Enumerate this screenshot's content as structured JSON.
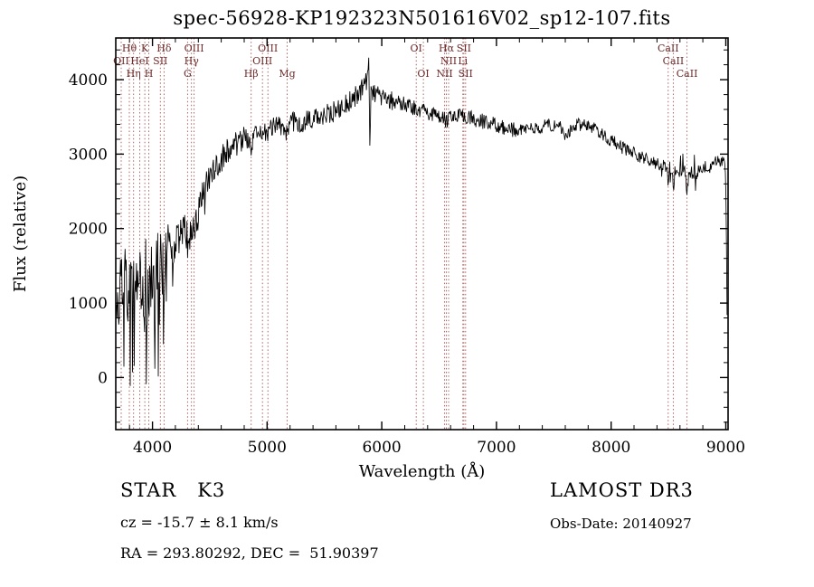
{
  "chart_data": {
    "type": "line",
    "title": "spec-56928-KP192323N501616V02_sp12-107.fits",
    "xlabel": "Wavelength (Å)",
    "ylabel": "Flux (relative)",
    "xlim": [
      3680,
      9020
    ],
    "ylim": [
      -700,
      4560
    ],
    "xticks": [
      4000,
      5000,
      6000,
      7000,
      8000,
      9000
    ],
    "yticks": [
      0,
      1000,
      2000,
      3000,
      4000
    ],
    "x_minor_step": 200,
    "y_minor_step": 200,
    "grid": false,
    "legend": "none",
    "line_marker_color": "#a85454",
    "line_label_color": "#6e2a2a",
    "spectrum_color": "#000000",
    "spectral_lines": [
      {
        "wavelength": 3727,
        "label": "OII",
        "row": 2
      },
      {
        "wavelength": 3798,
        "label": "Hθ",
        "row": 1
      },
      {
        "wavelength": 3835,
        "label": "Hη",
        "row": 3
      },
      {
        "wavelength": 3889,
        "label": "HeI",
        "row": 2
      },
      {
        "wavelength": 3933,
        "label": "K",
        "row": 1
      },
      {
        "wavelength": 3968,
        "label": "H",
        "row": 3
      },
      {
        "wavelength": 4069,
        "label": "SII",
        "row": 2
      },
      {
        "wavelength": 4101,
        "label": "Hδ",
        "row": 1
      },
      {
        "wavelength": 4306,
        "label": "G",
        "row": 3
      },
      {
        "wavelength": 4340,
        "label": "Hγ",
        "row": 2
      },
      {
        "wavelength": 4363,
        "label": "OIII",
        "row": 1
      },
      {
        "wavelength": 4861,
        "label": "Hβ",
        "row": 3
      },
      {
        "wavelength": 4959,
        "label": "OIII",
        "row": 2
      },
      {
        "wavelength": 5007,
        "label": "OIII",
        "row": 1
      },
      {
        "wavelength": 5175,
        "label": "Mg",
        "row": 3
      },
      {
        "wavelength": 6300,
        "label": "OI",
        "row": 1
      },
      {
        "wavelength": 6363,
        "label": "OI",
        "row": 3
      },
      {
        "wavelength": 6548,
        "label": "NII",
        "row": 3
      },
      {
        "wavelength": 6563,
        "label": "Hα",
        "row": 1
      },
      {
        "wavelength": 6583,
        "label": "NII",
        "row": 2
      },
      {
        "wavelength": 6707,
        "label": "Li",
        "row": 2
      },
      {
        "wavelength": 6716,
        "label": "SII",
        "row": 1
      },
      {
        "wavelength": 6731,
        "label": "SII",
        "row": 3
      },
      {
        "wavelength": 8498,
        "label": "CaII",
        "row": 1
      },
      {
        "wavelength": 8542,
        "label": "CaII",
        "row": 2
      },
      {
        "wavelength": 8662,
        "label": "CaII",
        "row": 3
      }
    ],
    "series": [
      {
        "name": "spectrum",
        "sample_step": 5,
        "noise_seed": 20140927,
        "noise_regions": [
          {
            "to": 4150,
            "amp": 480,
            "spike_prob": 0.16,
            "spike_amp": 1250
          },
          {
            "to": 4400,
            "amp": 260,
            "spike_prob": 0.05,
            "spike_amp": 500
          },
          {
            "to": 4800,
            "amp": 180,
            "spike_prob": 0.03,
            "spike_amp": 350
          },
          {
            "to": 5880,
            "amp": 140
          },
          {
            "to": 6100,
            "amp": 125
          },
          {
            "to": 7200,
            "amp": 105
          },
          {
            "to": 8400,
            "amp": 90
          },
          {
            "to": 9012,
            "amp": 85,
            "spike_prob": 0.04,
            "spike_amp": 300
          }
        ],
        "continuum_points": [
          [
            3686,
            1150
          ],
          [
            3700,
            1250
          ],
          [
            3715,
            1050
          ],
          [
            3730,
            1300
          ],
          [
            3745,
            1150
          ],
          [
            3760,
            1250
          ],
          [
            3775,
            1300
          ],
          [
            3790,
            1200
          ],
          [
            3805,
            1280
          ],
          [
            3820,
            1220
          ],
          [
            3835,
            1120
          ],
          [
            3850,
            1320
          ],
          [
            3865,
            1260
          ],
          [
            3880,
            1300
          ],
          [
            3895,
            1240
          ],
          [
            3910,
            1160
          ],
          [
            3925,
            1050
          ],
          [
            3933,
            950
          ],
          [
            3945,
            1250
          ],
          [
            3960,
            1120
          ],
          [
            3968,
            1030
          ],
          [
            3980,
            1300
          ],
          [
            4000,
            1500
          ],
          [
            4020,
            1480
          ],
          [
            4040,
            1550
          ],
          [
            4060,
            1480
          ],
          [
            4080,
            1460
          ],
          [
            4101,
            1340
          ],
          [
            4115,
            1560
          ],
          [
            4135,
            1650
          ],
          [
            4160,
            1700
          ],
          [
            4185,
            1760
          ],
          [
            4210,
            1800
          ],
          [
            4235,
            1840
          ],
          [
            4260,
            1890
          ],
          [
            4285,
            1930
          ],
          [
            4306,
            1840
          ],
          [
            4320,
            1920
          ],
          [
            4340,
            1780
          ],
          [
            4355,
            1960
          ],
          [
            4375,
            2080
          ],
          [
            4395,
            2220
          ],
          [
            4420,
            2360
          ],
          [
            4450,
            2520
          ],
          [
            4480,
            2640
          ],
          [
            4510,
            2720
          ],
          [
            4545,
            2810
          ],
          [
            4580,
            2890
          ],
          [
            4620,
            2970
          ],
          [
            4660,
            3040
          ],
          [
            4700,
            3090
          ],
          [
            4740,
            3140
          ],
          [
            4780,
            3180
          ],
          [
            4820,
            3220
          ],
          [
            4861,
            3080
          ],
          [
            4880,
            3260
          ],
          [
            4910,
            3300
          ],
          [
            4940,
            3330
          ],
          [
            4970,
            3310
          ],
          [
            5000,
            3290
          ],
          [
            5030,
            3330
          ],
          [
            5060,
            3360
          ],
          [
            5090,
            3390
          ],
          [
            5120,
            3370
          ],
          [
            5150,
            3340
          ],
          [
            5175,
            3240
          ],
          [
            5195,
            3380
          ],
          [
            5220,
            3420
          ],
          [
            5250,
            3440
          ],
          [
            5280,
            3410
          ],
          [
            5310,
            3430
          ],
          [
            5340,
            3450
          ],
          [
            5370,
            3460
          ],
          [
            5400,
            3480
          ],
          [
            5430,
            3490
          ],
          [
            5460,
            3510
          ],
          [
            5490,
            3530
          ],
          [
            5520,
            3540
          ],
          [
            5550,
            3550
          ],
          [
            5580,
            3570
          ],
          [
            5610,
            3590
          ],
          [
            5640,
            3620
          ],
          [
            5670,
            3650
          ],
          [
            5700,
            3690
          ],
          [
            5730,
            3720
          ],
          [
            5760,
            3760
          ],
          [
            5790,
            3810
          ],
          [
            5820,
            3860
          ],
          [
            5850,
            3930
          ],
          [
            5875,
            3990
          ],
          [
            5888,
            4340
          ],
          [
            5896,
            3020
          ],
          [
            5905,
            3790
          ],
          [
            5925,
            3810
          ],
          [
            5950,
            3800
          ],
          [
            5980,
            3780
          ],
          [
            6010,
            3770
          ],
          [
            6040,
            3750
          ],
          [
            6070,
            3730
          ],
          [
            6100,
            3710
          ],
          [
            6130,
            3700
          ],
          [
            6160,
            3690
          ],
          [
            6190,
            3670
          ],
          [
            6220,
            3660
          ],
          [
            6250,
            3640
          ],
          [
            6280,
            3620
          ],
          [
            6310,
            3600
          ],
          [
            6340,
            3590
          ],
          [
            6370,
            3570
          ],
          [
            6400,
            3560
          ],
          [
            6430,
            3550
          ],
          [
            6460,
            3540
          ],
          [
            6490,
            3530
          ],
          [
            6520,
            3510
          ],
          [
            6545,
            3490
          ],
          [
            6563,
            3430
          ],
          [
            6580,
            3490
          ],
          [
            6610,
            3500
          ],
          [
            6640,
            3510
          ],
          [
            6670,
            3520
          ],
          [
            6700,
            3520
          ],
          [
            6730,
            3500
          ],
          [
            6760,
            3490
          ],
          [
            6790,
            3480
          ],
          [
            6820,
            3460
          ],
          [
            6850,
            3450
          ],
          [
            6880,
            3440
          ],
          [
            6910,
            3430
          ],
          [
            6940,
            3410
          ],
          [
            6970,
            3400
          ],
          [
            7000,
            3390
          ],
          [
            7030,
            3380
          ],
          [
            7060,
            3360
          ],
          [
            7090,
            3350
          ],
          [
            7120,
            3340
          ],
          [
            7150,
            3330
          ],
          [
            7180,
            3320
          ],
          [
            7210,
            3320
          ],
          [
            7240,
            3320
          ],
          [
            7270,
            3330
          ],
          [
            7300,
            3340
          ],
          [
            7330,
            3350
          ],
          [
            7360,
            3360
          ],
          [
            7390,
            3370
          ],
          [
            7420,
            3380
          ],
          [
            7450,
            3390
          ],
          [
            7480,
            3390
          ],
          [
            7510,
            3390
          ],
          [
            7540,
            3380
          ],
          [
            7570,
            3330
          ],
          [
            7600,
            3240
          ],
          [
            7620,
            3290
          ],
          [
            7650,
            3340
          ],
          [
            7680,
            3370
          ],
          [
            7710,
            3390
          ],
          [
            7740,
            3390
          ],
          [
            7770,
            3380
          ],
          [
            7800,
            3370
          ],
          [
            7830,
            3350
          ],
          [
            7860,
            3330
          ],
          [
            7890,
            3300
          ],
          [
            7920,
            3270
          ],
          [
            7950,
            3240
          ],
          [
            7980,
            3210
          ],
          [
            8010,
            3180
          ],
          [
            8040,
            3150
          ],
          [
            8070,
            3120
          ],
          [
            8100,
            3090
          ],
          [
            8130,
            3060
          ],
          [
            8160,
            3030
          ],
          [
            8190,
            3010
          ],
          [
            8220,
            2990
          ],
          [
            8250,
            2970
          ],
          [
            8280,
            2950
          ],
          [
            8310,
            2930
          ],
          [
            8340,
            2910
          ],
          [
            8370,
            2890
          ],
          [
            8400,
            2880
          ],
          [
            8430,
            2860
          ],
          [
            8460,
            2850
          ],
          [
            8490,
            2840
          ],
          [
            8498,
            2520
          ],
          [
            8510,
            2820
          ],
          [
            8534,
            2800
          ],
          [
            8542,
            2460
          ],
          [
            8556,
            2790
          ],
          [
            8590,
            2780
          ],
          [
            8620,
            2770
          ],
          [
            8650,
            2760
          ],
          [
            8662,
            2420
          ],
          [
            8676,
            2750
          ],
          [
            8710,
            2750
          ],
          [
            8740,
            2760
          ],
          [
            8770,
            2780
          ],
          [
            8800,
            2810
          ],
          [
            8830,
            2840
          ],
          [
            8860,
            2860
          ],
          [
            8890,
            2880
          ],
          [
            8920,
            2900
          ],
          [
            8950,
            2910
          ],
          [
            8975,
            2900
          ],
          [
            8995,
            2800
          ],
          [
            9003,
            2400
          ],
          [
            9008,
            1400
          ],
          [
            9012,
            700
          ]
        ]
      }
    ]
  },
  "footer": {
    "star_type": "STAR   K3",
    "survey": "LAMOST DR3",
    "cz": "cz = -15.7 ± 8.1 km/s",
    "obs_date": "Obs-Date: 20140927",
    "radec": "RA = 293.80292, DEC =  51.90397"
  }
}
